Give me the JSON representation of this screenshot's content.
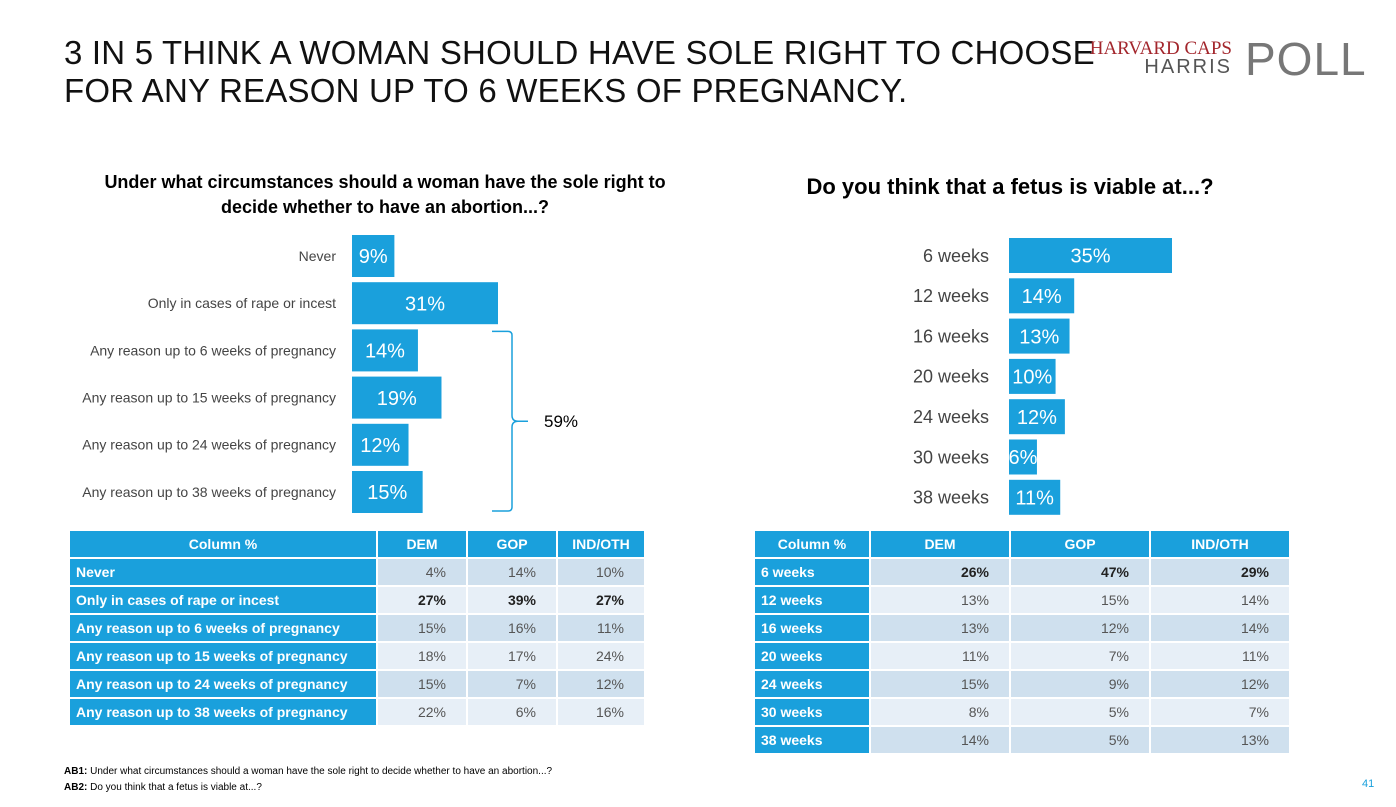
{
  "title": {
    "line1": "3 IN 5 THINK A WOMAN SHOULD HAVE SOLE RIGHT TO CHOOSE",
    "line2": "FOR ANY REASON UP TO 6 WEEKS OF PREGNANCY."
  },
  "logo": {
    "line1": "HARVARD CAPS",
    "line2": "HARRIS",
    "big": "POLL"
  },
  "colors": {
    "bar": "#1aa0dc",
    "header": "#1aa0dc",
    "row_odd": "#cfe0ee",
    "row_even": "#e7eff7",
    "brand_red": "#a3262c"
  },
  "chart_data": [
    {
      "type": "bar",
      "orientation": "horizontal",
      "title": "Under what circumstances should a woman have the sole right to decide whether to have an abortion...?",
      "categories": [
        "Never",
        "Only in cases of rape or incest",
        "Any reason up to 6 weeks of pregnancy",
        "Any reason up to 15 weeks of pregnancy",
        "Any reason up to 24 weeks of pregnancy",
        "Any reason up to 38 weeks of pregnancy"
      ],
      "values": [
        9,
        31,
        14,
        19,
        12,
        15
      ],
      "value_labels": [
        "9%",
        "31%",
        "14%",
        "19%",
        "12%",
        "15%"
      ],
      "bracket": {
        "covers": [
          "Any reason up to 6 weeks of pregnancy",
          "Any reason up to 38 weeks of pregnancy"
        ],
        "label": "59%"
      }
    },
    {
      "type": "bar",
      "orientation": "horizontal",
      "title": "Do you think that a fetus is viable at...?",
      "categories": [
        "6 weeks",
        "12 weeks",
        "16 weeks",
        "20 weeks",
        "24 weeks",
        "30 weeks",
        "38 weeks"
      ],
      "values": [
        35,
        14,
        13,
        10,
        12,
        6,
        11
      ],
      "value_labels": [
        "35%",
        "14%",
        "13%",
        "10%",
        "12%",
        "6%",
        "11%"
      ]
    },
    {
      "type": "table",
      "columns": [
        "Column %",
        "DEM",
        "GOP",
        "IND/OTH"
      ],
      "rows": [
        {
          "label": "Never",
          "values": [
            "4%",
            "14%",
            "10%"
          ],
          "bold": false
        },
        {
          "label": "Only in cases of rape or incest",
          "values": [
            "27%",
            "39%",
            "27%"
          ],
          "bold": true
        },
        {
          "label": "Any reason up to 6 weeks of pregnancy",
          "values": [
            "15%",
            "16%",
            "11%"
          ],
          "bold": false
        },
        {
          "label": "Any reason up to 15 weeks of pregnancy",
          "values": [
            "18%",
            "17%",
            "24%"
          ],
          "bold": false
        },
        {
          "label": "Any reason up to 24 weeks of pregnancy",
          "values": [
            "15%",
            "7%",
            "12%"
          ],
          "bold": false
        },
        {
          "label": "Any reason up to 38 weeks of pregnancy",
          "values": [
            "22%",
            "6%",
            "16%"
          ],
          "bold": false
        }
      ]
    },
    {
      "type": "table",
      "columns": [
        "Column %",
        "DEM",
        "GOP",
        "IND/OTH"
      ],
      "rows": [
        {
          "label": "6 weeks",
          "values": [
            "26%",
            "47%",
            "29%"
          ],
          "bold": true
        },
        {
          "label": "12 weeks",
          "values": [
            "13%",
            "15%",
            "14%"
          ],
          "bold": false
        },
        {
          "label": "16 weeks",
          "values": [
            "13%",
            "12%",
            "14%"
          ],
          "bold": false
        },
        {
          "label": "20 weeks",
          "values": [
            "11%",
            "7%",
            "11%"
          ],
          "bold": false
        },
        {
          "label": "24 weeks",
          "values": [
            "15%",
            "9%",
            "12%"
          ],
          "bold": false
        },
        {
          "label": "30 weeks",
          "values": [
            "8%",
            "5%",
            "7%"
          ],
          "bold": false
        },
        {
          "label": "38 weeks",
          "values": [
            "14%",
            "5%",
            "13%"
          ],
          "bold": false
        }
      ]
    }
  ],
  "footnotes": [
    {
      "code": "AB1:",
      "text": " Under what circumstances should a woman have the sole right to decide whether to have an abortion...?"
    },
    {
      "code": "AB2:",
      "text": " Do you think that a fetus is viable at...?"
    }
  ],
  "page_number": "41"
}
